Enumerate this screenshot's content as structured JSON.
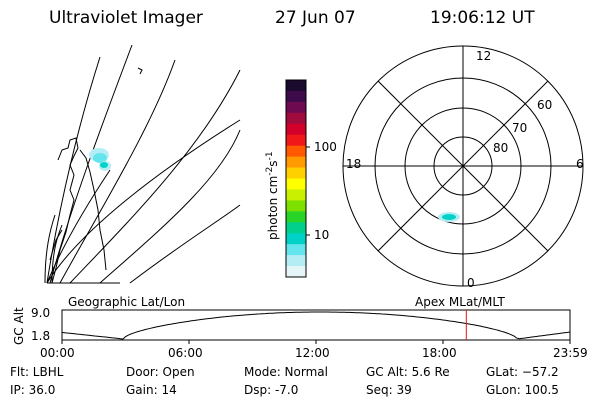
{
  "header": {
    "instrument": "Ultraviolet Imager",
    "date": "27 Jun 07",
    "time": "19:06:12 UT"
  },
  "geo_panel": {
    "label": "Geographic Lat/Lon"
  },
  "colorbar": {
    "unit": "photon cm",
    "unit_exp1": "-2",
    "unit_mid": "s",
    "unit_exp2": "-1",
    "ticks": [
      "100",
      "10"
    ],
    "colors": [
      "#1a0a2e",
      "#3d0a4a",
      "#6e0a50",
      "#a00a3c",
      "#d2002a",
      "#f01818",
      "#ff5a00",
      "#ff9a00",
      "#ffd000",
      "#ffff00",
      "#c8f000",
      "#7ce000",
      "#28d428",
      "#00d08c",
      "#00d2c8",
      "#64e4ec",
      "#b4eef4",
      "#e6f6f8"
    ]
  },
  "polar_plot": {
    "label": "Apex MLat/MLT",
    "mlt_labels": {
      "top": "12",
      "left": "18",
      "right": "6",
      "bottom": "0"
    },
    "lat_labels": [
      "60",
      "70",
      "80"
    ]
  },
  "timeline": {
    "ylabel": "GC Alt",
    "y_ticks": [
      "9.0",
      "1.8"
    ],
    "x_ticks": [
      "00:00",
      "06:00",
      "12:00",
      "18:00",
      "23:59"
    ],
    "current_time_hours": 19.1
  },
  "info": {
    "filter": "Flt: LBHL",
    "ip": "IP: 36.0",
    "door": "Door: Open",
    "gain": "Gain: 14",
    "mode": "Mode: Normal",
    "dsp": "Dsp:   -7.0",
    "gc_alt": "GC Alt: 5.6 Re",
    "seq": "Seq: 39",
    "glat": "GLat: −57.2",
    "glon": "GLon: 100.5"
  }
}
